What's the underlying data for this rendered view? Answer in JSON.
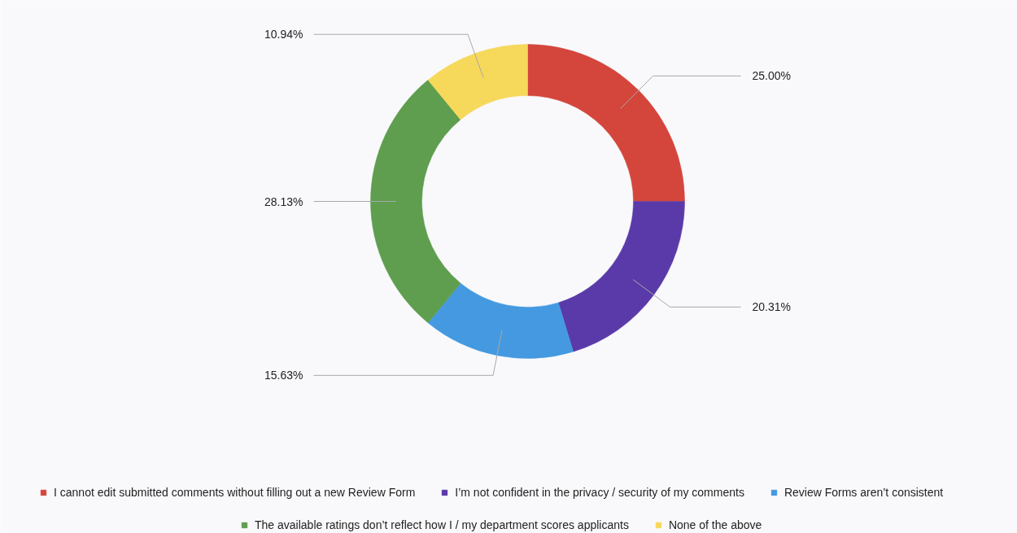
{
  "chart_data": {
    "type": "donut",
    "categories": [
      "I cannot edit submitted comments without filling out a new Review Form",
      "I’m not confident in the privacy / security of my comments",
      "Review Forms aren’t consistent",
      "The available ratings don’t reflect how I / my department scores applicants",
      "None of the above"
    ],
    "values": [
      25.0,
      20.31,
      15.63,
      28.13,
      10.94
    ],
    "value_labels": [
      "25.00%",
      "20.31%",
      "15.63%",
      "28.13%",
      "10.94%"
    ],
    "colors": [
      "#d4463c",
      "#5a3aa8",
      "#4499e0",
      "#5e9e4e",
      "#f6d85a"
    ],
    "legend": "bottom"
  }
}
